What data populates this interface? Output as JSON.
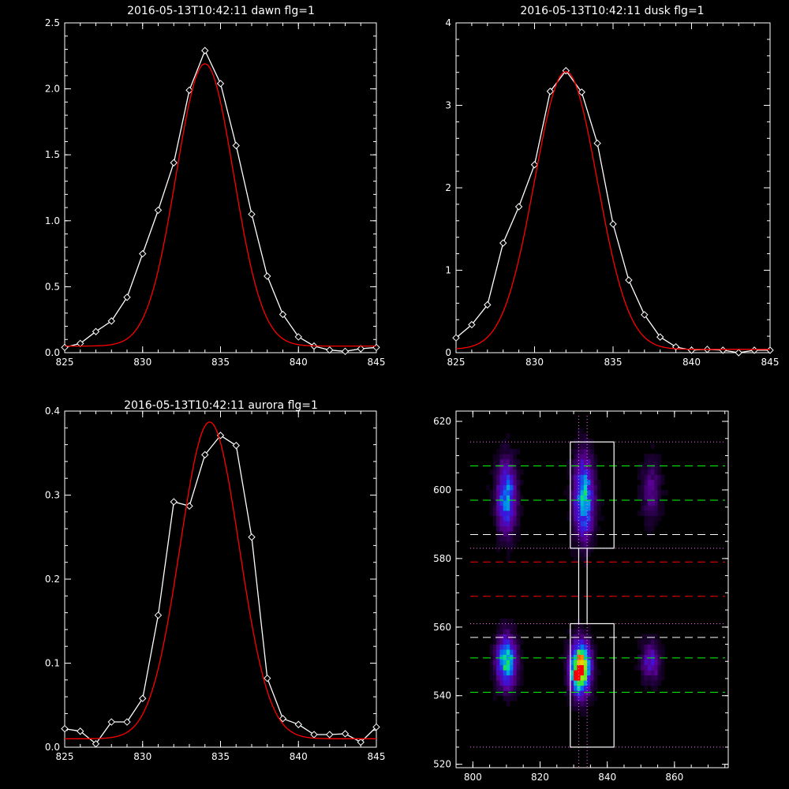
{
  "chart_data": [
    {
      "type": "line",
      "title": "2016-05-13T10:42:11 dawn flg=1",
      "xlim": [
        825,
        845
      ],
      "ylim": [
        0,
        2.5
      ],
      "xticks": [
        825,
        830,
        835,
        840,
        845
      ],
      "yticks": [
        0.0,
        0.5,
        1.0,
        1.5,
        2.0,
        2.5
      ],
      "ytick_labels": [
        "0.0",
        "0.5",
        "1.0",
        "1.5",
        "2.0",
        "2.5"
      ],
      "series": [
        {
          "style": "data",
          "color": "#ffffff",
          "marker": "diamond",
          "x": [
            825,
            826,
            827,
            828,
            829,
            830,
            831,
            832,
            833,
            834,
            835,
            836,
            837,
            838,
            839,
            840,
            841,
            842,
            843,
            844,
            845
          ],
          "y": [
            0.04,
            0.07,
            0.16,
            0.24,
            0.42,
            0.75,
            1.08,
            1.44,
            1.99,
            2.29,
            2.04,
            1.57,
            1.05,
            0.58,
            0.29,
            0.12,
            0.05,
            0.02,
            0.01,
            0.03,
            0.04
          ]
        },
        {
          "style": "fit",
          "color": "#ff0000",
          "model": "gaussian",
          "amplitude": 2.14,
          "center": 834.0,
          "sigma": 1.85,
          "offset": 0.05
        }
      ]
    },
    {
      "type": "line",
      "title": "2016-05-13T10:42:11 dusk flg=1",
      "xlim": [
        825,
        845
      ],
      "ylim": [
        0,
        4
      ],
      "xticks": [
        825,
        830,
        835,
        840,
        845
      ],
      "yticks": [
        0,
        1,
        2,
        3,
        4
      ],
      "ytick_labels": [
        "0",
        "1",
        "2",
        "3",
        "4"
      ],
      "series": [
        {
          "style": "data",
          "color": "#ffffff",
          "marker": "diamond",
          "x": [
            825,
            826,
            827,
            828,
            829,
            830,
            831,
            832,
            833,
            834,
            835,
            836,
            837,
            838,
            839,
            840,
            841,
            842,
            843,
            844,
            845
          ],
          "y": [
            0.18,
            0.34,
            0.58,
            1.33,
            1.77,
            2.28,
            3.17,
            3.42,
            3.16,
            2.54,
            1.56,
            0.88,
            0.46,
            0.19,
            0.07,
            0.03,
            0.04,
            0.03,
            0.0,
            0.03,
            0.03
          ]
        },
        {
          "style": "fit",
          "color": "#ff0000",
          "model": "gaussian",
          "amplitude": 3.37,
          "center": 832.0,
          "sigma": 2.0,
          "offset": 0.04
        }
      ]
    },
    {
      "type": "line",
      "title": "2016-05-13T10:42:11 aurora flg=1",
      "xlim": [
        825,
        845
      ],
      "ylim": [
        0,
        0.4
      ],
      "xticks": [
        825,
        830,
        835,
        840,
        845
      ],
      "yticks": [
        0.0,
        0.1,
        0.2,
        0.3,
        0.4
      ],
      "ytick_labels": [
        "0.0",
        "0.1",
        "0.2",
        "0.3",
        "0.4"
      ],
      "series": [
        {
          "style": "data",
          "color": "#ffffff",
          "marker": "diamond",
          "x": [
            825,
            826,
            827,
            828,
            829,
            830,
            831,
            832,
            833,
            834,
            835,
            836,
            837,
            838,
            839,
            840,
            841,
            842,
            843,
            844,
            845
          ],
          "y": [
            0.022,
            0.019,
            0.004,
            0.03,
            0.03,
            0.058,
            0.157,
            0.292,
            0.287,
            0.348,
            0.371,
            0.359,
            0.25,
            0.082,
            0.034,
            0.027,
            0.015,
            0.015,
            0.016,
            0.006,
            0.024
          ]
        },
        {
          "style": "fit",
          "color": "#ff0000",
          "model": "gaussian",
          "amplitude": 0.377,
          "center": 834.3,
          "sigma": 1.9,
          "offset": 0.01
        }
      ]
    },
    {
      "type": "heatmap",
      "xlim": [
        795,
        876
      ],
      "ylim": [
        519,
        623
      ],
      "xticks": [
        800,
        820,
        840,
        860
      ],
      "yticks": [
        520,
        540,
        560,
        580,
        600,
        620
      ],
      "colormap": "rainbow-on-black",
      "emission_blobs": [
        {
          "x": 810,
          "y": 550,
          "sx": 2.0,
          "sy": 5.0,
          "intensity": 0.62
        },
        {
          "x": 832,
          "y": 548,
          "sx": 2.0,
          "sy": 5.0,
          "intensity": 1.0
        },
        {
          "x": 831,
          "y": 546,
          "sx": 0.9,
          "sy": 1.5,
          "intensity": 0.35
        },
        {
          "x": 853,
          "y": 550,
          "sx": 2.0,
          "sy": 4.0,
          "intensity": 0.28
        },
        {
          "x": 810,
          "y": 598,
          "sx": 2.0,
          "sy": 7.0,
          "intensity": 0.48
        },
        {
          "x": 833,
          "y": 598,
          "sx": 2.0,
          "sy": 8.0,
          "intensity": 0.58
        },
        {
          "x": 853,
          "y": 600,
          "sx": 2.0,
          "sy": 6.0,
          "intensity": 0.2
        }
      ],
      "guide_lines": {
        "vertical_dotted_x": [
          831.5,
          834.0
        ],
        "horizontal_dotted_y": [
          525,
          561,
          583,
          614
        ],
        "horizontal_dashed_green_y": [
          541,
          551,
          597,
          607
        ],
        "horizontal_dashed_white_y": [
          557,
          587
        ],
        "horizontal_dashed_red_y": [
          569,
          579
        ]
      },
      "boxes": [
        {
          "x0": 829,
          "x1": 842,
          "y0": 525,
          "y1": 561
        },
        {
          "x0": 829,
          "x1": 842,
          "y0": 583,
          "y1": 614
        }
      ],
      "connector_x": [
        831.5,
        834.0
      ],
      "colors": {
        "dotted": "#ff66ff",
        "green": "#00ff00",
        "white": "#ffffff",
        "red": "#ff0000"
      }
    }
  ]
}
